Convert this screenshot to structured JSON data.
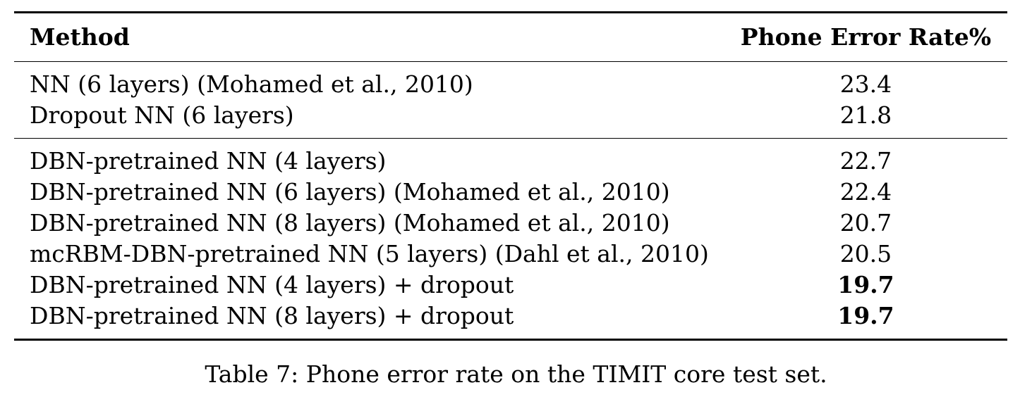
{
  "table": {
    "headers": {
      "method": "Method",
      "per": "Phone Error Rate%"
    },
    "group_a": [
      {
        "method": "NN (6 layers) (Mohamed et al., 2010)",
        "per": "23.4",
        "bold": false
      },
      {
        "method": "Dropout NN (6 layers)",
        "per": "21.8",
        "bold": false
      }
    ],
    "group_b": [
      {
        "method": "DBN-pretrained NN (4 layers)",
        "per": "22.7",
        "bold": false
      },
      {
        "method": "DBN-pretrained NN (6 layers) (Mohamed et al., 2010)",
        "per": "22.4",
        "bold": false
      },
      {
        "method": "DBN-pretrained NN (8 layers) (Mohamed et al., 2010)",
        "per": "20.7",
        "bold": false
      },
      {
        "method": "mcRBM-DBN-pretrained NN (5 layers) (Dahl et al., 2010)",
        "per": "20.5",
        "bold": false
      },
      {
        "method": "DBN-pretrained NN (4 layers) + dropout",
        "per": "19.7",
        "bold": true
      },
      {
        "method": "DBN-pretrained NN (8 layers) + dropout",
        "per": "19.7",
        "bold": true
      }
    ]
  },
  "caption": "Table 7: Phone error rate on the TIMIT core test set."
}
